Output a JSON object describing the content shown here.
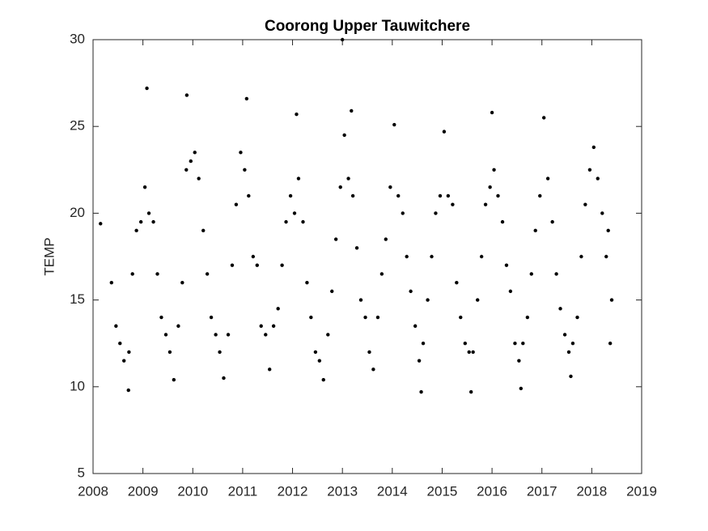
{
  "chart_data": {
    "type": "scatter",
    "title": "Coorong Upper Tauwitchere",
    "ylabel": "TEMP",
    "color": "#000000",
    "x": [
      2008.15,
      2008.37,
      2008.46,
      2008.54,
      2008.62,
      2008.71,
      2008.72,
      2008.79,
      2008.87,
      2008.96,
      2009.04,
      2009.08,
      2009.12,
      2009.21,
      2009.29,
      2009.37,
      2009.46,
      2009.54,
      2009.62,
      2009.71,
      2009.79,
      2009.87,
      2009.88,
      2009.96,
      2010.04,
      2010.12,
      2010.21,
      2010.29,
      2010.37,
      2010.46,
      2010.54,
      2010.62,
      2010.71,
      2010.79,
      2010.87,
      2010.96,
      2011.04,
      2011.08,
      2011.12,
      2011.21,
      2011.29,
      2011.37,
      2011.46,
      2011.54,
      2011.62,
      2011.71,
      2011.79,
      2011.87,
      2011.96,
      2012.04,
      2012.08,
      2012.12,
      2012.21,
      2012.29,
      2012.37,
      2012.46,
      2012.54,
      2012.62,
      2012.71,
      2012.79,
      2012.87,
      2012.96,
      2013.0,
      2013.04,
      2013.12,
      2013.18,
      2013.21,
      2013.29,
      2013.37,
      2013.46,
      2013.54,
      2013.62,
      2013.71,
      2013.79,
      2013.87,
      2013.96,
      2014.04,
      2014.12,
      2014.21,
      2014.29,
      2014.37,
      2014.46,
      2014.54,
      2014.58,
      2014.62,
      2014.71,
      2014.79,
      2014.87,
      2014.96,
      2015.04,
      2015.12,
      2015.21,
      2015.29,
      2015.37,
      2015.46,
      2015.54,
      2015.58,
      2015.62,
      2015.71,
      2015.79,
      2015.87,
      2015.96,
      2016.0,
      2016.04,
      2016.12,
      2016.21,
      2016.29,
      2016.37,
      2016.46,
      2016.54,
      2016.58,
      2016.62,
      2016.71,
      2016.79,
      2016.87,
      2016.96,
      2017.04,
      2017.12,
      2017.21,
      2017.29,
      2017.37,
      2017.46,
      2017.54,
      2017.58,
      2017.62,
      2017.71,
      2017.79,
      2017.87,
      2017.96,
      2018.04,
      2018.12,
      2018.21,
      2018.29,
      2018.33,
      2018.37,
      2018.4
    ],
    "values": [
      19.4,
      16.0,
      13.5,
      12.5,
      11.5,
      9.8,
      12.0,
      16.5,
      19.0,
      19.5,
      21.5,
      27.2,
      20.0,
      19.5,
      16.5,
      14.0,
      13.0,
      12.0,
      10.4,
      13.5,
      16.0,
      22.5,
      26.8,
      23.0,
      23.5,
      22.0,
      19.0,
      16.5,
      14.0,
      13.0,
      12.0,
      10.5,
      13.0,
      17.0,
      20.5,
      23.5,
      22.5,
      26.6,
      21.0,
      17.5,
      17.0,
      13.5,
      13.0,
      11.0,
      13.5,
      14.5,
      17.0,
      19.5,
      21.0,
      20.0,
      25.7,
      22.0,
      19.5,
      16.0,
      14.0,
      12.0,
      11.5,
      10.4,
      13.0,
      15.5,
      18.5,
      21.5,
      30.0,
      24.5,
      22.0,
      25.9,
      21.0,
      18.0,
      15.0,
      14.0,
      12.0,
      11.0,
      14.0,
      16.5,
      18.5,
      21.5,
      25.1,
      21.0,
      20.0,
      17.5,
      15.5,
      13.5,
      11.5,
      9.7,
      12.5,
      15.0,
      17.5,
      20.0,
      21.0,
      24.7,
      21.0,
      20.5,
      16.0,
      14.0,
      12.5,
      12.0,
      9.7,
      12.0,
      15.0,
      17.5,
      20.5,
      21.5,
      25.8,
      22.5,
      21.0,
      19.5,
      17.0,
      15.5,
      12.5,
      11.5,
      9.9,
      12.5,
      14.0,
      16.5,
      19.0,
      21.0,
      25.5,
      22.0,
      19.5,
      16.5,
      14.5,
      13.0,
      12.0,
      10.6,
      12.5,
      14.0,
      17.5,
      20.5,
      22.5,
      23.8,
      22.0,
      20.0,
      17.5,
      19.0,
      12.5,
      15.0
    ],
    "xlim": [
      2008,
      2019
    ],
    "xticks": [
      2008,
      2009,
      2010,
      2011,
      2012,
      2013,
      2014,
      2015,
      2016,
      2017,
      2018,
      2019
    ],
    "ylim": [
      5,
      30
    ],
    "yticks": [
      5,
      10,
      15,
      20,
      25,
      30
    ]
  }
}
